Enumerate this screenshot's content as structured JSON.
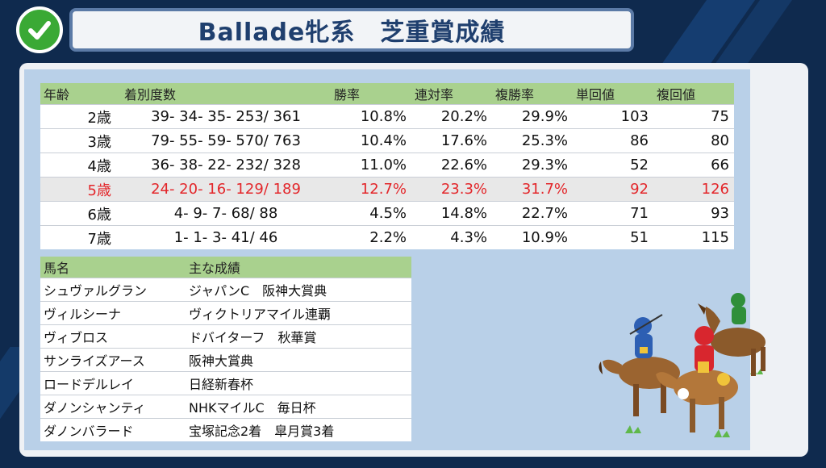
{
  "title": "Ballade牝系　芝重賞成績",
  "stats": {
    "headers": [
      "年齢",
      "着別度数",
      "勝率",
      "連対率",
      "複勝率",
      "単回値",
      "複回値"
    ],
    "rows": [
      [
        "2歳",
        "39- 34- 35- 253/ 361",
        "10.8%",
        "20.2%",
        "29.9%",
        "103",
        "75"
      ],
      [
        "3歳",
        "79- 55- 59- 570/ 763",
        "10.4%",
        "17.6%",
        "25.3%",
        "86",
        "80"
      ],
      [
        "4歳",
        "36- 38- 22- 232/ 328",
        "11.0%",
        "22.6%",
        "29.3%",
        "52",
        "66"
      ],
      [
        "5歳",
        "24- 20- 16- 129/ 189",
        "12.7%",
        "23.3%",
        "31.7%",
        "92",
        "126"
      ],
      [
        "6歳",
        "4- 9- 7- 68/ 88",
        "4.5%",
        "14.8%",
        "22.7%",
        "71",
        "93"
      ],
      [
        "7歳",
        "1- 1- 3- 41/ 46",
        "2.2%",
        "4.3%",
        "10.9%",
        "51",
        "115"
      ]
    ]
  },
  "horses": {
    "headers": [
      "馬名",
      "主な成績"
    ],
    "rows": [
      [
        "シュヴァルグラン",
        "ジャパンC　阪神大賞典"
      ],
      [
        "ヴィルシーナ",
        "ヴィクトリアマイル連覇"
      ],
      [
        "ヴィブロス",
        "ドバイターフ　秋華賞"
      ],
      [
        "サンライズアース",
        "阪神大賞典"
      ],
      [
        "ロードデルレイ",
        "日経新春杯"
      ],
      [
        "ダノンシャンティ",
        "NHKマイルC　毎日杯"
      ],
      [
        "ダノンバラード",
        "宝塚記念2着　皐月賞3着"
      ]
    ]
  },
  "colors": {
    "header_green": "#a9d18e",
    "highlight_red": "#e3262a",
    "title_blue": "#1f3f6e",
    "check_green": "#3aa935"
  },
  "icons": [
    "check-icon",
    "racehorse-illustration"
  ]
}
